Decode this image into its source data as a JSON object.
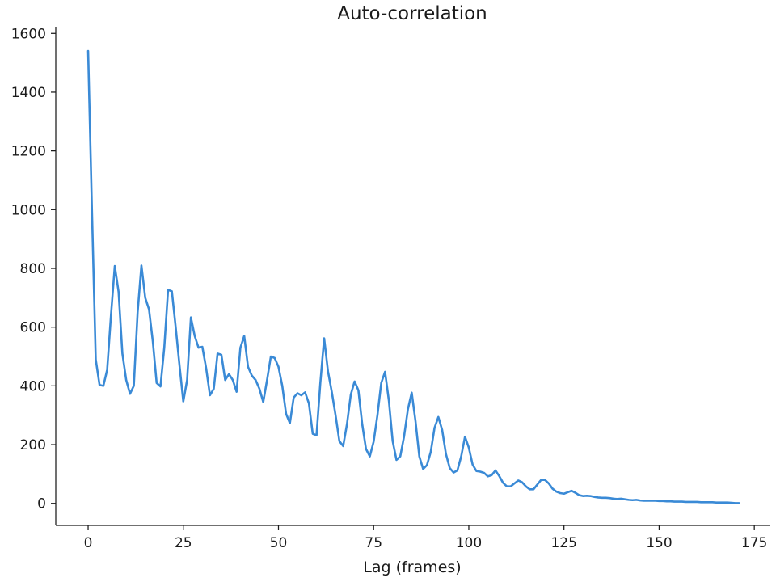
{
  "chart_data": {
    "type": "line",
    "title": "Auto-correlation",
    "xlabel": "Lag (frames)",
    "ylabel": "",
    "xlim": [
      -8.5,
      179
    ],
    "ylim": [
      -75,
      1620
    ],
    "x_ticks": [
      0,
      25,
      50,
      75,
      100,
      125,
      150,
      175
    ],
    "x_tick_labels": [
      "0",
      "25",
      "50",
      "75",
      "100",
      "125",
      "150",
      "175"
    ],
    "y_ticks": [
      0,
      200,
      400,
      600,
      800,
      1000,
      1200,
      1400,
      1600
    ],
    "y_tick_labels": [
      "0",
      "200",
      "400",
      "600",
      "800",
      "1000",
      "1200",
      "1400",
      "1600"
    ],
    "grid": false,
    "line_color": "#3a8ad6",
    "x": [
      0,
      1,
      2,
      3,
      4,
      5,
      6,
      7,
      8,
      9,
      10,
      11,
      12,
      13,
      14,
      15,
      16,
      17,
      18,
      19,
      20,
      21,
      22,
      23,
      24,
      25,
      26,
      27,
      28,
      29,
      30,
      31,
      32,
      33,
      34,
      35,
      36,
      37,
      38,
      39,
      40,
      41,
      42,
      43,
      44,
      45,
      46,
      47,
      48,
      49,
      50,
      51,
      52,
      53,
      54,
      55,
      56,
      57,
      58,
      59,
      60,
      61,
      62,
      63,
      64,
      65,
      66,
      67,
      68,
      69,
      70,
      71,
      72,
      73,
      74,
      75,
      76,
      77,
      78,
      79,
      80,
      81,
      82,
      83,
      84,
      85,
      86,
      87,
      88,
      89,
      90,
      91,
      92,
      93,
      94,
      95,
      96,
      97,
      98,
      99,
      100,
      101,
      102,
      103,
      104,
      105,
      106,
      107,
      108,
      109,
      110,
      111,
      112,
      113,
      114,
      115,
      116,
      117,
      118,
      119,
      120,
      121,
      122,
      123,
      124,
      125,
      126,
      127,
      128,
      129,
      130,
      131,
      132,
      133,
      134,
      135,
      136,
      137,
      138,
      139,
      140,
      141,
      142,
      143,
      144,
      145,
      146,
      147,
      148,
      149,
      150,
      151,
      152,
      153,
      154,
      155,
      156,
      157,
      158,
      159,
      160,
      161,
      162,
      163,
      164,
      165,
      166,
      167,
      168,
      169,
      170,
      171
    ],
    "series": [
      {
        "values": [
          1540,
          1000,
          490,
          403,
          400,
          455,
          640,
          808,
          720,
          510,
          420,
          373,
          400,
          650,
          810,
          700,
          660,
          550,
          410,
          398,
          530,
          727,
          722,
          600,
          470,
          347,
          420,
          633,
          570,
          530,
          533,
          460,
          368,
          390,
          510,
          506,
          420,
          440,
          420,
          380,
          530,
          570,
          465,
          435,
          420,
          390,
          345,
          420,
          500,
          495,
          465,
          400,
          305,
          273,
          360,
          375,
          368,
          378,
          340,
          237,
          232,
          410,
          562,
          450,
          380,
          300,
          212,
          195,
          270,
          370,
          415,
          385,
          270,
          185,
          160,
          210,
          300,
          410,
          448,
          350,
          212,
          148,
          160,
          228,
          320,
          377,
          280,
          160,
          117,
          130,
          175,
          257,
          294,
          250,
          168,
          120,
          105,
          112,
          160,
          227,
          190,
          132,
          110,
          108,
          104,
          92,
          96,
          112,
          93,
          70,
          58,
          58,
          68,
          78,
          72,
          58,
          48,
          48,
          64,
          80,
          80,
          68,
          50,
          40,
          35,
          33,
          38,
          43,
          36,
          28,
          25,
          26,
          25,
          22,
          20,
          19,
          19,
          18,
          16,
          15,
          16,
          14,
          12,
          11,
          12,
          10,
          9,
          9,
          9,
          9,
          8,
          8,
          7,
          7,
          6,
          6,
          6,
          5,
          5,
          5,
          5,
          4,
          4,
          4,
          4,
          3,
          3,
          3,
          3,
          2,
          1,
          1
        ]
      }
    ]
  }
}
